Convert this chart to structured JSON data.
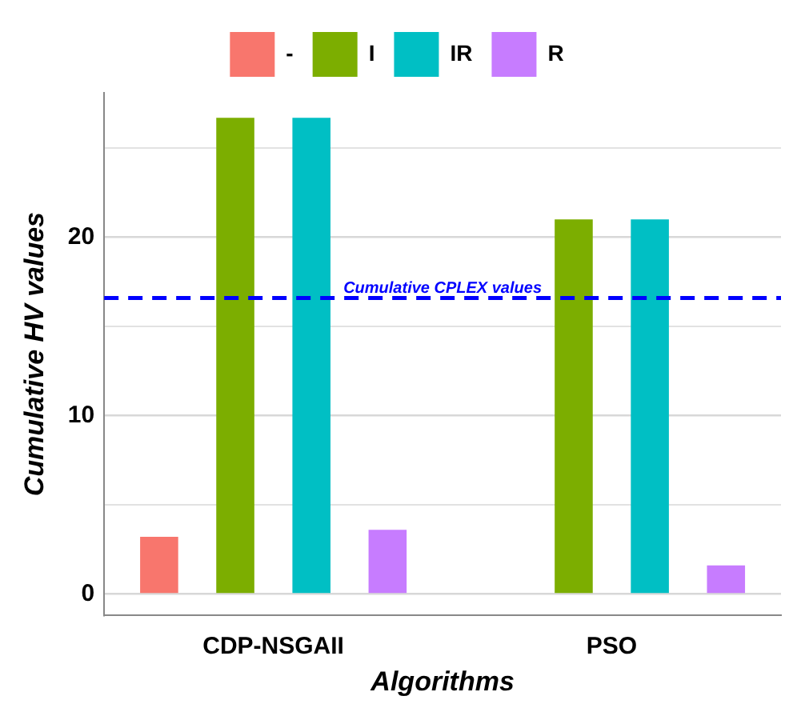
{
  "chart_data": {
    "type": "bar",
    "xlabel": "Algorithms",
    "ylabel": "Cumulative HV values",
    "categories": [
      "CDP-NSGAII",
      "PSO"
    ],
    "series": [
      {
        "name": "-",
        "color": "#f8766d",
        "values": [
          3.2,
          0
        ]
      },
      {
        "name": "I",
        "color": "#7cae00",
        "values": [
          26.7,
          21.0
        ]
      },
      {
        "name": "IR",
        "color": "#00bfc4",
        "values": [
          26.7,
          21.0
        ]
      },
      {
        "name": "R",
        "color": "#c77cff",
        "values": [
          3.6,
          1.6
        ]
      }
    ],
    "ylim": [
      -1.2,
      28.1
    ],
    "yticks": [
      0,
      {
        "value": 5,
        "label": null
      },
      10,
      {
        "value": 15,
        "label": null
      },
      20,
      {
        "value": 25,
        "label": null
      }
    ],
    "grid": "y",
    "legend": "top",
    "ref_lines": [
      {
        "axis": "y",
        "value": 16.6,
        "label": "Cumulative CPLEX values",
        "color": "#0000ff",
        "line_style": "dashed"
      }
    ]
  }
}
